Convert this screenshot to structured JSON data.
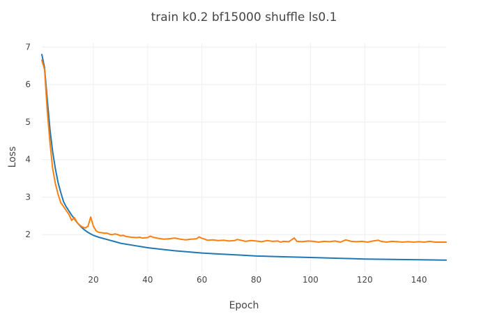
{
  "chart_data": {
    "type": "line",
    "title": "train k0.2 bf15000 shuffle ls0.1",
    "xlabel": "Epoch",
    "ylabel": "Loss",
    "xlim": [
      1,
      150
    ],
    "ylim": [
      1.0,
      7.1
    ],
    "xticks": [
      20,
      40,
      60,
      80,
      100,
      120,
      140
    ],
    "yticks": [
      2,
      3,
      4,
      5,
      6,
      7
    ],
    "grid": true,
    "legend": "none",
    "series": [
      {
        "color": "#1f77b4",
        "points": [
          [
            1,
            6.8
          ],
          [
            2,
            6.45
          ],
          [
            3,
            5.6
          ],
          [
            4,
            4.8
          ],
          [
            5,
            4.2
          ],
          [
            6,
            3.75
          ],
          [
            7,
            3.38
          ],
          [
            8,
            3.12
          ],
          [
            9,
            2.88
          ],
          [
            10,
            2.74
          ],
          [
            11,
            2.63
          ],
          [
            12,
            2.52
          ],
          [
            13,
            2.42
          ],
          [
            14,
            2.32
          ],
          [
            15,
            2.24
          ],
          [
            16,
            2.17
          ],
          [
            17,
            2.11
          ],
          [
            18,
            2.06
          ],
          [
            19,
            2.02
          ],
          [
            20,
            1.98
          ],
          [
            22,
            1.93
          ],
          [
            25,
            1.87
          ],
          [
            28,
            1.81
          ],
          [
            30,
            1.77
          ],
          [
            35,
            1.71
          ],
          [
            40,
            1.65
          ],
          [
            45,
            1.61
          ],
          [
            50,
            1.57
          ],
          [
            55,
            1.54
          ],
          [
            60,
            1.51
          ],
          [
            65,
            1.49
          ],
          [
            70,
            1.47
          ],
          [
            75,
            1.45
          ],
          [
            80,
            1.43
          ],
          [
            90,
            1.41
          ],
          [
            100,
            1.39
          ],
          [
            110,
            1.37
          ],
          [
            120,
            1.35
          ],
          [
            130,
            1.34
          ],
          [
            140,
            1.33
          ],
          [
            150,
            1.32
          ]
        ]
      },
      {
        "color": "#ff7f0e",
        "points": [
          [
            1,
            6.65
          ],
          [
            2,
            6.4
          ],
          [
            3,
            5.3
          ],
          [
            4,
            4.45
          ],
          [
            5,
            3.75
          ],
          [
            6,
            3.35
          ],
          [
            7,
            3.07
          ],
          [
            8,
            2.85
          ],
          [
            9,
            2.75
          ],
          [
            10,
            2.64
          ],
          [
            11,
            2.54
          ],
          [
            12,
            2.38
          ],
          [
            13,
            2.45
          ],
          [
            14,
            2.32
          ],
          [
            15,
            2.25
          ],
          [
            16,
            2.2
          ],
          [
            17,
            2.18
          ],
          [
            18,
            2.22
          ],
          [
            19,
            2.47
          ],
          [
            20,
            2.22
          ],
          [
            21,
            2.1
          ],
          [
            22,
            2.06
          ],
          [
            23,
            2.05
          ],
          [
            24,
            2.04
          ],
          [
            25,
            2.04
          ],
          [
            26,
            2.01
          ],
          [
            27,
            2.0
          ],
          [
            28,
            2.02
          ],
          [
            29,
            2.0
          ],
          [
            30,
            1.97
          ],
          [
            31,
            1.98
          ],
          [
            32,
            1.95
          ],
          [
            34,
            1.93
          ],
          [
            36,
            1.92
          ],
          [
            37,
            1.93
          ],
          [
            38,
            1.91
          ],
          [
            40,
            1.92
          ],
          [
            41,
            1.96
          ],
          [
            42,
            1.93
          ],
          [
            44,
            1.9
          ],
          [
            46,
            1.88
          ],
          [
            48,
            1.89
          ],
          [
            50,
            1.91
          ],
          [
            52,
            1.88
          ],
          [
            54,
            1.86
          ],
          [
            56,
            1.88
          ],
          [
            58,
            1.89
          ],
          [
            59,
            1.94
          ],
          [
            60,
            1.9
          ],
          [
            61,
            1.88
          ],
          [
            62,
            1.85
          ],
          [
            64,
            1.86
          ],
          [
            66,
            1.84
          ],
          [
            68,
            1.85
          ],
          [
            70,
            1.83
          ],
          [
            72,
            1.84
          ],
          [
            73,
            1.87
          ],
          [
            75,
            1.84
          ],
          [
            76,
            1.82
          ],
          [
            78,
            1.84
          ],
          [
            80,
            1.83
          ],
          [
            82,
            1.81
          ],
          [
            84,
            1.84
          ],
          [
            86,
            1.82
          ],
          [
            88,
            1.83
          ],
          [
            89,
            1.8
          ],
          [
            90,
            1.82
          ],
          [
            92,
            1.81
          ],
          [
            94,
            1.91
          ],
          [
            95,
            1.82
          ],
          [
            97,
            1.81
          ],
          [
            99,
            1.83
          ],
          [
            101,
            1.82
          ],
          [
            103,
            1.8
          ],
          [
            105,
            1.82
          ],
          [
            107,
            1.81
          ],
          [
            109,
            1.83
          ],
          [
            111,
            1.8
          ],
          [
            113,
            1.86
          ],
          [
            115,
            1.82
          ],
          [
            117,
            1.81
          ],
          [
            119,
            1.82
          ],
          [
            121,
            1.8
          ],
          [
            123,
            1.83
          ],
          [
            125,
            1.85
          ],
          [
            126,
            1.82
          ],
          [
            128,
            1.8
          ],
          [
            130,
            1.82
          ],
          [
            132,
            1.81
          ],
          [
            134,
            1.8
          ],
          [
            136,
            1.81
          ],
          [
            138,
            1.8
          ],
          [
            140,
            1.81
          ],
          [
            142,
            1.8
          ],
          [
            144,
            1.82
          ],
          [
            146,
            1.8
          ],
          [
            148,
            1.8
          ],
          [
            150,
            1.8
          ]
        ]
      }
    ]
  }
}
